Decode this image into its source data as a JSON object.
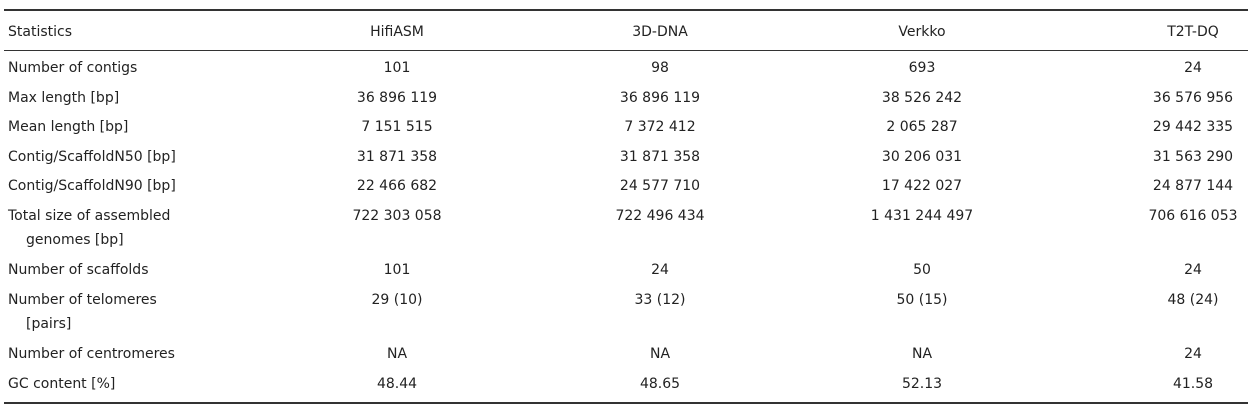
{
  "table": {
    "columns": [
      "Statistics",
      "HifiASM",
      "3D-DNA",
      "Verkko",
      "T2T-DQ"
    ],
    "rows": [
      {
        "label": [
          "Number of contigs"
        ],
        "values": [
          "101",
          "98",
          "693",
          "24"
        ]
      },
      {
        "label": [
          "Max length [bp]"
        ],
        "values": [
          "36 896 119",
          "36 896 119",
          "38 526 242",
          "36 576 956"
        ]
      },
      {
        "label": [
          "Mean length [bp]"
        ],
        "values": [
          "7 151 515",
          "7 372 412",
          "2 065 287",
          "29 442 335"
        ]
      },
      {
        "label": [
          "Contig/ScaffoldN50 [bp]"
        ],
        "values": [
          "31 871 358",
          "31 871 358",
          "30 206 031",
          "31 563 290"
        ]
      },
      {
        "label": [
          "Contig/ScaffoldN90 [bp]"
        ],
        "values": [
          "22 466 682",
          "24 577 710",
          "17 422 027",
          "24 877 144"
        ]
      },
      {
        "label": [
          "Total size of assembled",
          "genomes [bp]"
        ],
        "values": [
          "722 303 058",
          "722 496 434",
          "1 431 244 497",
          "706 616 053"
        ]
      },
      {
        "label": [
          "Number of scaffolds"
        ],
        "values": [
          "101",
          "24",
          "50",
          "24"
        ]
      },
      {
        "label": [
          "Number of telomeres",
          "[pairs]"
        ],
        "values": [
          "29 (10)",
          "33 (12)",
          "50 (15)",
          "48 (24)"
        ]
      },
      {
        "label": [
          "Number of centromeres"
        ],
        "values": [
          "NA",
          "NA",
          "NA",
          "24"
        ]
      },
      {
        "label": [
          "GC content [%]"
        ],
        "values": [
          "48.44",
          "48.65",
          "52.13",
          "41.58"
        ]
      }
    ]
  }
}
